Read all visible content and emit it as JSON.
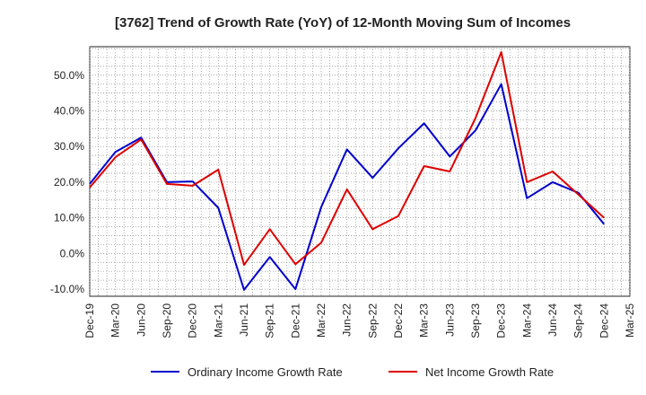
{
  "chart_data": {
    "type": "line",
    "title": "[3762]  Trend of Growth Rate (YoY) of 12-Month Moving Sum of Incomes",
    "xlabel": "",
    "ylabel": "",
    "x": [
      "Dec-19",
      "Mar-20",
      "Jun-20",
      "Sep-20",
      "Dec-20",
      "Mar-21",
      "Jun-21",
      "Sep-21",
      "Dec-21",
      "Mar-22",
      "Jun-22",
      "Sep-22",
      "Dec-22",
      "Mar-23",
      "Jun-23",
      "Sep-23",
      "Dec-23",
      "Mar-24",
      "Jun-24",
      "Sep-24",
      "Dec-24",
      "Mar-25"
    ],
    "ylim": [
      -12,
      58
    ],
    "yticks": [
      -10,
      0,
      10,
      20,
      30,
      40,
      50
    ],
    "ytick_labels": [
      "-10.0%",
      "0.0%",
      "10.0%",
      "20.0%",
      "30.0%",
      "40.0%",
      "50.0%"
    ],
    "grid": true,
    "legend_position": "bottom",
    "series": [
      {
        "name": "Ordinary Income Growth Rate",
        "color": "#0000cc",
        "values": [
          19.5,
          28.5,
          32.5,
          20.0,
          20.2,
          12.8,
          -10.2,
          -1.0,
          -10.0,
          13.0,
          29.2,
          21.2,
          29.5,
          36.5,
          27.2,
          34.5,
          47.5,
          15.5,
          20.0,
          17.0,
          8.2,
          null
        ]
      },
      {
        "name": "Net Income Growth Rate",
        "color": "#dd0000",
        "values": [
          18.5,
          27.0,
          32.0,
          19.5,
          19.0,
          23.5,
          -3.2,
          6.8,
          -3.0,
          3.0,
          18.0,
          6.8,
          10.5,
          24.5,
          23.0,
          38.0,
          56.5,
          20.0,
          23.0,
          16.5,
          10.0,
          null
        ]
      }
    ]
  }
}
